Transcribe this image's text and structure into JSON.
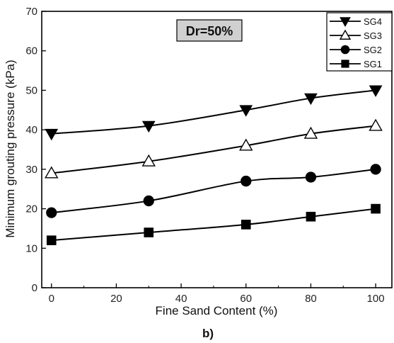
{
  "chart_data": {
    "type": "line",
    "annotation": "Dr=50%",
    "panel_label": "b)",
    "xlabel": "Fine Sand Content (%)",
    "ylabel": "Minimum grouting pressure (kPa)",
    "xlim": [
      -3,
      105
    ],
    "ylim": [
      0,
      70
    ],
    "x_ticks": [
      0,
      20,
      40,
      60,
      80,
      100
    ],
    "y_ticks": [
      0,
      10,
      20,
      30,
      40,
      50,
      60,
      70
    ],
    "grid": false,
    "legend_position": "top-right",
    "series": [
      {
        "name": "SG4",
        "marker": "triangle-down-filled",
        "x": [
          0,
          30,
          60,
          80,
          100
        ],
        "values": [
          39,
          41,
          45,
          48,
          50
        ]
      },
      {
        "name": "SG3",
        "marker": "triangle-up-open",
        "x": [
          0,
          30,
          60,
          80,
          100
        ],
        "values": [
          29,
          32,
          36,
          39,
          41
        ]
      },
      {
        "name": "SG2",
        "marker": "circle-filled",
        "x": [
          0,
          30,
          60,
          80,
          100
        ],
        "values": [
          19,
          22,
          27,
          28,
          30
        ]
      },
      {
        "name": "SG1",
        "marker": "square-filled",
        "x": [
          0,
          30,
          60,
          80,
          100
        ],
        "values": [
          12,
          14,
          16,
          18,
          20
        ]
      }
    ]
  }
}
